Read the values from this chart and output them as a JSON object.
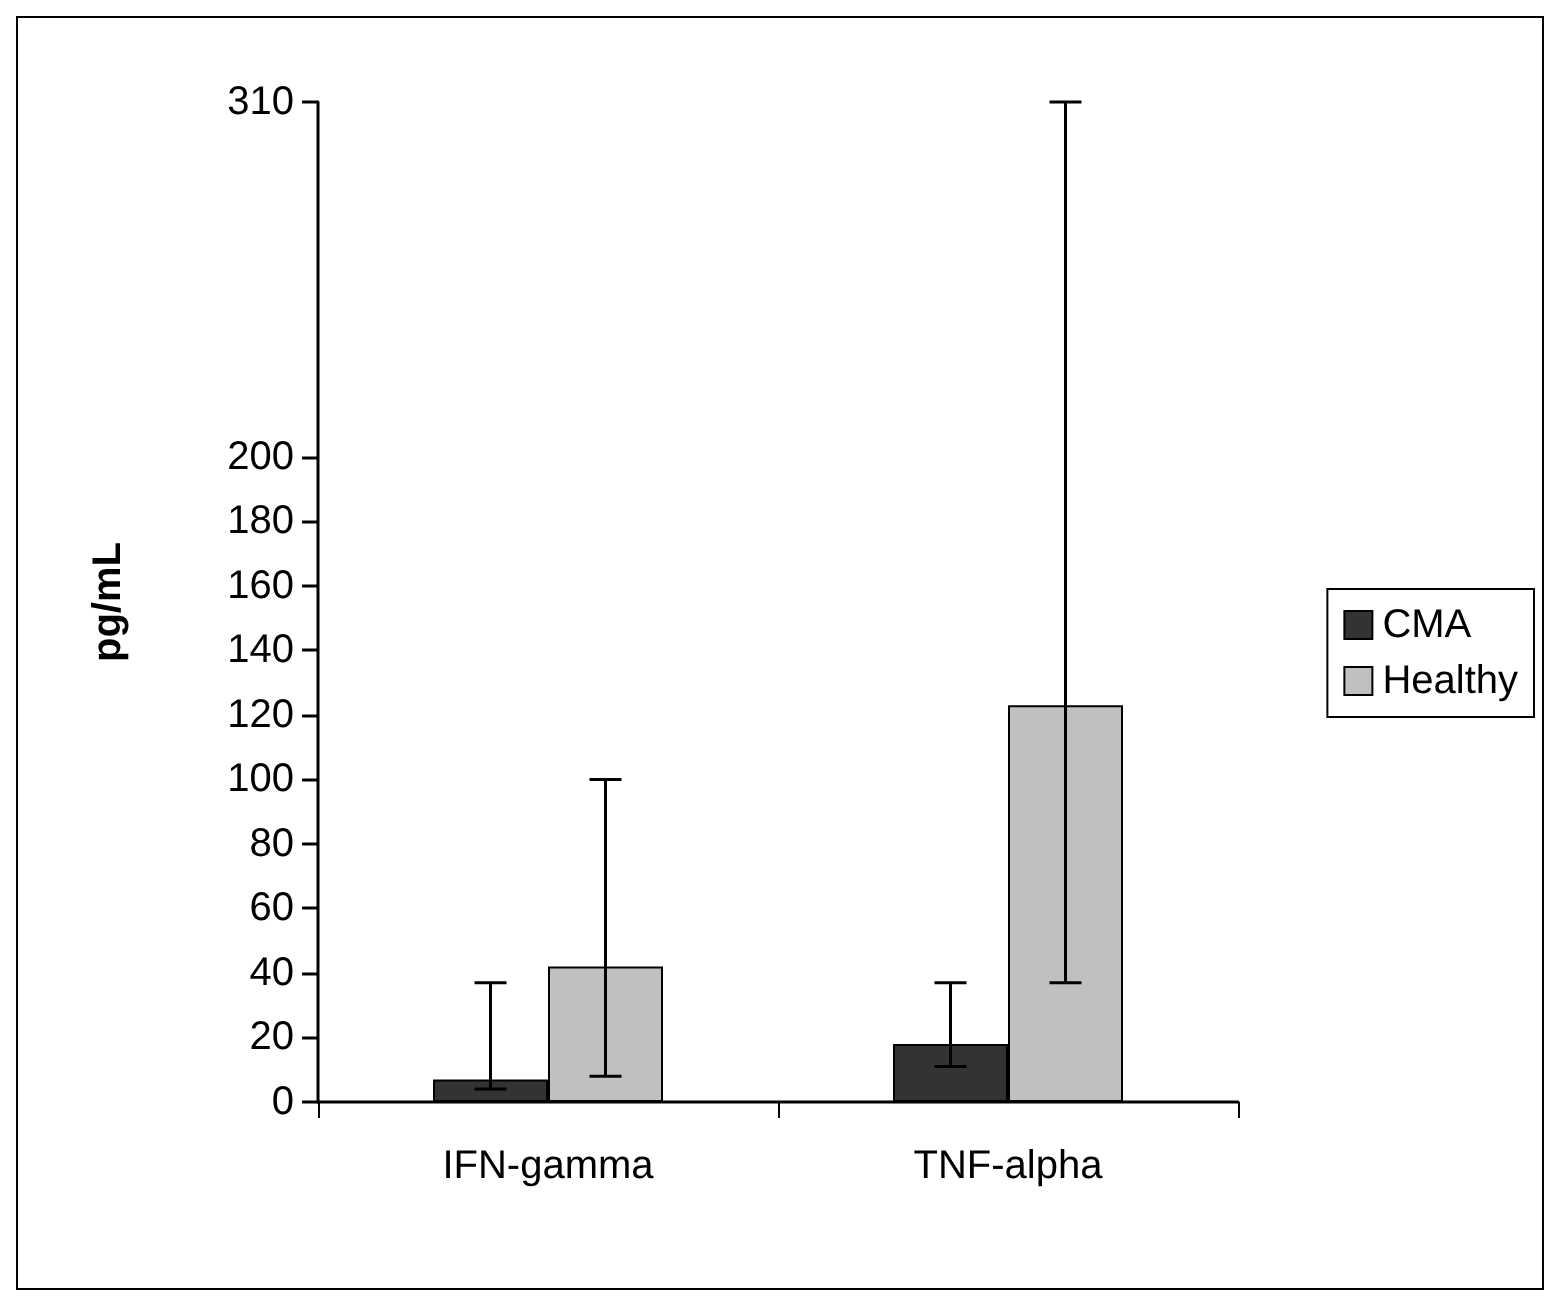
{
  "chart_data": {
    "type": "bar",
    "ylabel": "pg/mL",
    "categories": [
      "IFN-gamma",
      "TNF-alpha"
    ],
    "series": [
      {
        "name": "CMA",
        "color": "#333333",
        "values": [
          7,
          18
        ],
        "errors": [
          [
            4,
            37
          ],
          [
            11,
            37
          ]
        ]
      },
      {
        "name": "Healthy",
        "color": "#c0c0c0",
        "values": [
          42,
          123
        ],
        "errors": [
          [
            8,
            100
          ],
          [
            37,
            310
          ]
        ]
      }
    ],
    "ylim": [
      0,
      310
    ],
    "yticks": [
      0,
      20,
      40,
      60,
      80,
      100,
      120,
      140,
      160,
      180,
      200,
      310
    ],
    "grid": false,
    "legend": "right"
  }
}
